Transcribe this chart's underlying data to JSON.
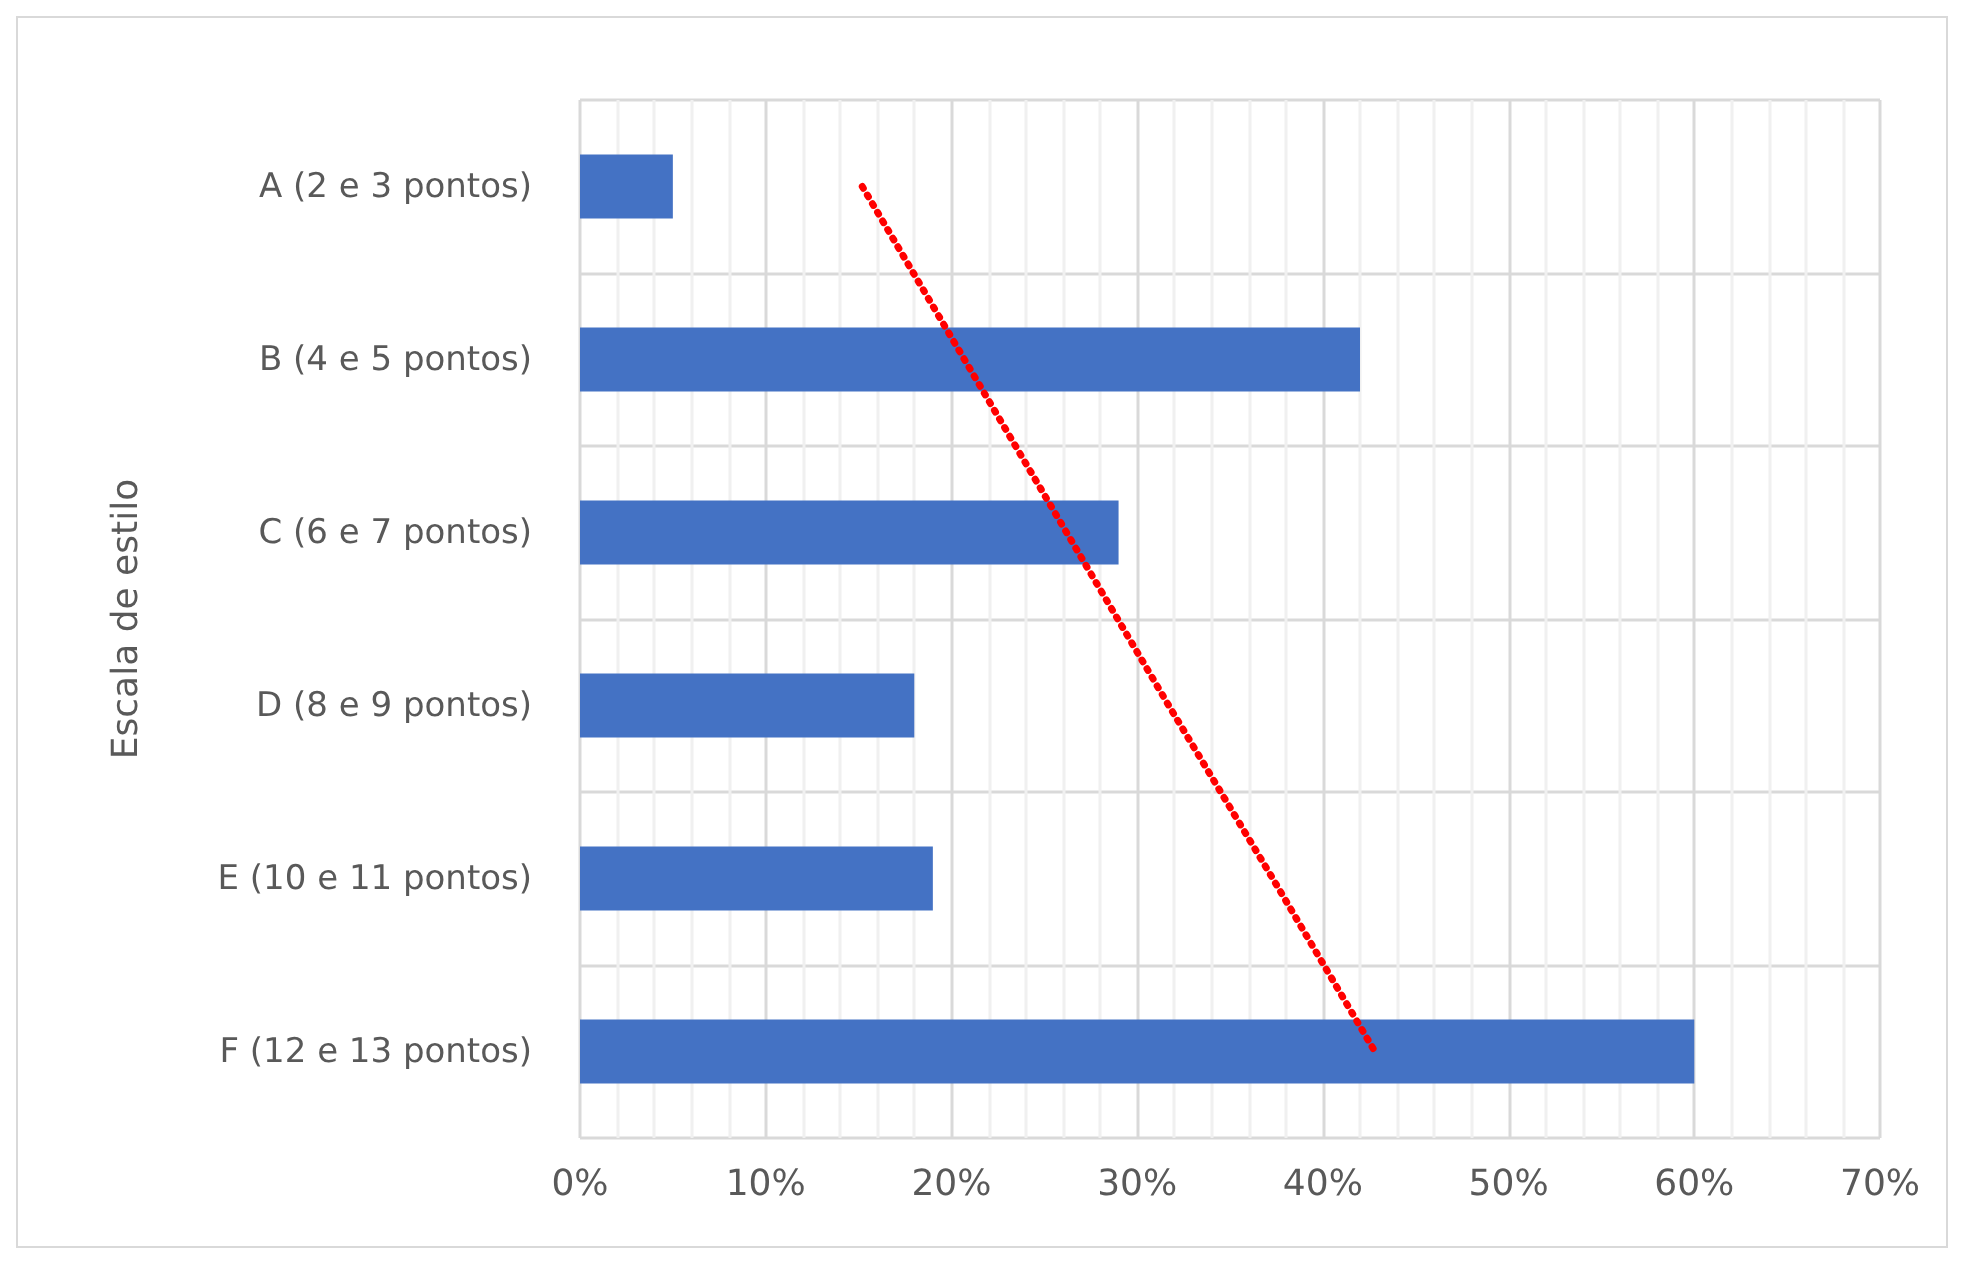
{
  "chart_data": {
    "type": "bar",
    "orientation": "horizontal",
    "ylabel": "Escala de estilo",
    "categories": [
      "A (2 e 3 pontos)",
      "B (4 e 5 pontos)",
      "C (6 e 7 pontos)",
      "D (8 e 9 pontos)",
      "E (10 e 11 pontos)",
      "F (12 e 13 pontos)"
    ],
    "series": [
      {
        "color": "#4472c4",
        "values": [
          5,
          42,
          29,
          18,
          19,
          60
        ]
      },
      {
        "type": "line",
        "color": "#ff0000",
        "line_style": "dotted",
        "values": [
          15.2,
          20.7,
          26.2,
          31.7,
          37.3,
          42.8
        ]
      }
    ],
    "xlim": [
      0,
      70
    ],
    "xticks": [
      {
        "value": 0,
        "label": "0%"
      },
      {
        "value": 10,
        "label": "10%"
      },
      {
        "value": 20,
        "label": "20%"
      },
      {
        "value": 30,
        "label": "30%"
      },
      {
        "value": 40,
        "label": "40%"
      },
      {
        "value": 50,
        "label": "50%"
      },
      {
        "value": 60,
        "label": "60%"
      },
      {
        "value": 70,
        "label": "70%"
      }
    ],
    "grid": true
  }
}
